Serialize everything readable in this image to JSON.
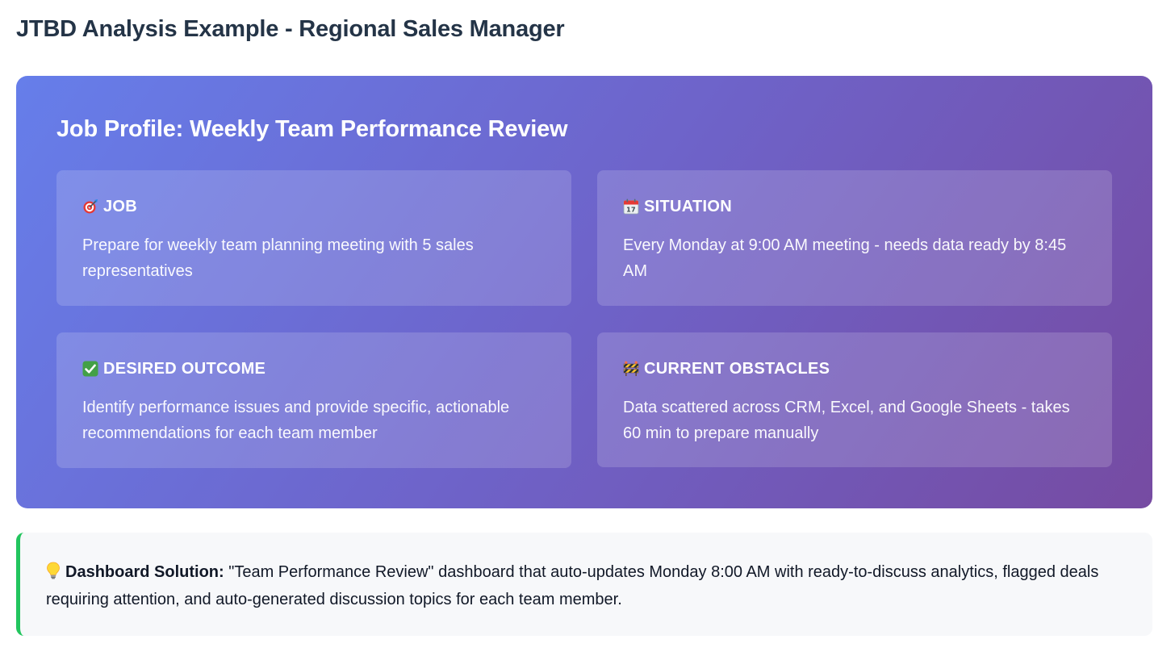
{
  "page": {
    "title": "JTBD Analysis Example - Regional Sales Manager"
  },
  "profile": {
    "title": "Job Profile: Weekly Team Performance Review",
    "boxes": [
      {
        "icon": "target-icon",
        "heading": "JOB",
        "text": "Prepare for weekly team planning meeting with 5 sales representatives"
      },
      {
        "icon": "calendar-icon",
        "heading": "SITUATION",
        "text": "Every Monday at 9:00 AM meeting - needs data ready by 8:45 AM"
      },
      {
        "icon": "check-mark-icon",
        "heading": "DESIRED OUTCOME",
        "text": "Identify performance issues and provide specific, actionable recommendations for each team member"
      },
      {
        "icon": "construction-barrier-icon",
        "heading": "CURRENT OBSTACLES",
        "text": "Data scattered across CRM, Excel, and Google Sheets - takes 60 min to prepare manually"
      }
    ]
  },
  "solution": {
    "icon": "lightbulb-icon",
    "label": "Dashboard Solution:",
    "text": " \"Team Performance Review\" dashboard that auto-updates Monday 8:00 AM with ready-to-discuss analytics, flagged deals requiring attention, and auto-generated discussion topics for each team member."
  },
  "colors": {
    "gradient_start": "#667eea",
    "gradient_end": "#764ba2",
    "solution_accent": "#22c55e",
    "title_color": "#243447"
  }
}
